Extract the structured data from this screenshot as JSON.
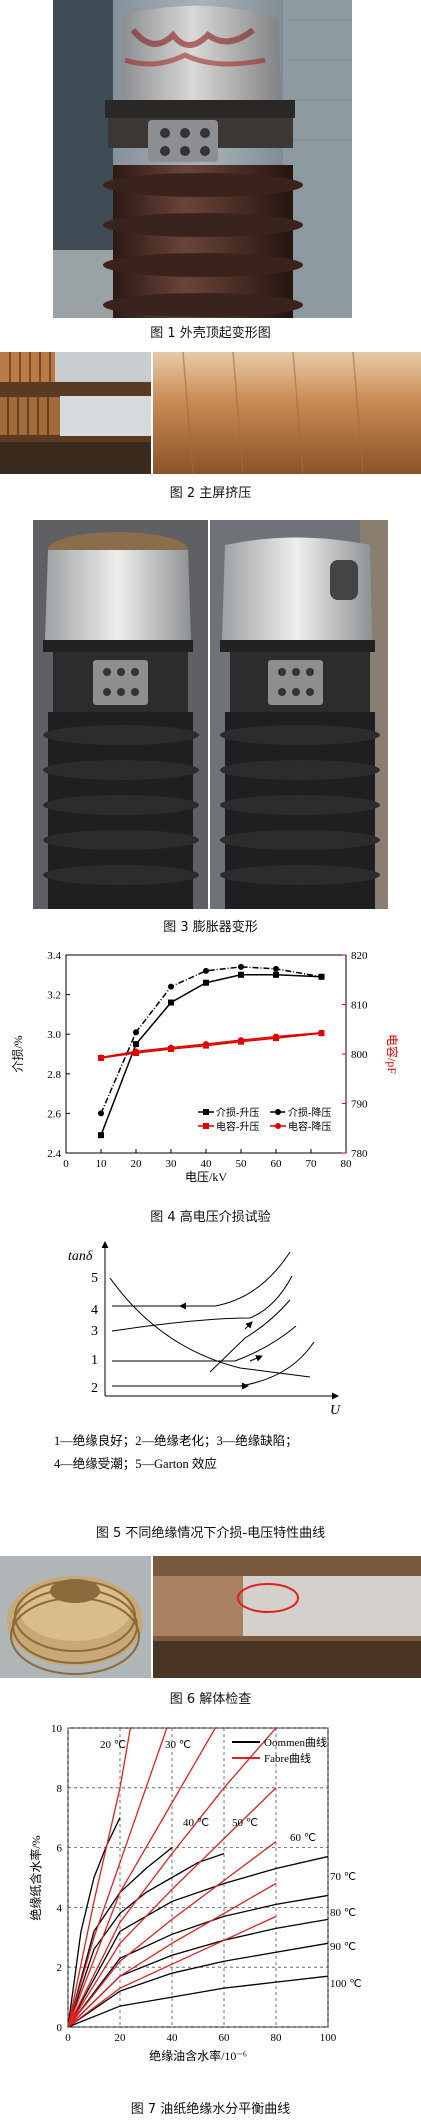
{
  "figures": {
    "fig1": {
      "caption": "图 1  外壳顶起变形图"
    },
    "fig2": {
      "caption": "图 2  主屏挤压"
    },
    "fig3": {
      "caption": "图 3  膨胀器变形"
    },
    "fig4": {
      "caption": "图 4  高电压介损试验"
    },
    "fig5": {
      "caption": "图 5  不同绝缘情况下介损-电压特性曲线"
    },
    "fig6": {
      "caption": "图 6  解体检查"
    },
    "fig7": {
      "caption": "图 7  油纸绝缘水分平衡曲线"
    }
  },
  "chart_data": [
    {
      "id": "fig4",
      "type": "line",
      "xlabel": "电压/kV",
      "ylabel_left": "介损/%",
      "ylabel_right": "电容/pF",
      "xlim": [
        0,
        80
      ],
      "ylim_left": [
        2.4,
        3.4
      ],
      "ylim_right": [
        780,
        820
      ],
      "x_ticks": [
        "0",
        "10",
        "20",
        "30",
        "40",
        "50",
        "60",
        "70",
        "80"
      ],
      "y_ticks_left": [
        "2.4",
        "2.6",
        "2.8",
        "3.0",
        "3.2",
        "3.4"
      ],
      "y_ticks_right": [
        "780",
        "790",
        "800",
        "810",
        "820"
      ],
      "series": [
        {
          "name": "介损-升压",
          "axis": "left",
          "color": "#000000",
          "marker": "square",
          "dash": "solid",
          "x": [
            10,
            20,
            30,
            40,
            50,
            60,
            73
          ],
          "y": [
            2.49,
            2.95,
            3.16,
            3.26,
            3.3,
            3.3,
            3.29
          ]
        },
        {
          "name": "介损-降压",
          "axis": "left",
          "color": "#000000",
          "marker": "circle",
          "dash": "dashdot",
          "x": [
            10,
            20,
            30,
            40,
            50,
            60,
            73
          ],
          "y": [
            2.6,
            3.01,
            3.24,
            3.32,
            3.34,
            3.33,
            3.29
          ]
        },
        {
          "name": "电容-升压",
          "axis": "right",
          "color": "#e00000",
          "marker": "square",
          "dash": "solid",
          "x": [
            10,
            20,
            30,
            40,
            50,
            60,
            73
          ],
          "y": [
            799.2,
            800.2,
            801.0,
            801.7,
            802.5,
            803.2,
            804.2
          ]
        },
        {
          "name": "电容-降压",
          "axis": "right",
          "color": "#e00000",
          "marker": "circle",
          "dash": "solid",
          "x": [
            10,
            20,
            30,
            40,
            50,
            60,
            73
          ],
          "y": [
            799.3,
            800.5,
            801.3,
            802.0,
            802.8,
            803.5,
            804.3
          ]
        }
      ]
    },
    {
      "id": "fig7",
      "type": "line",
      "xlabel": "绝缘油含水率/10⁻⁶",
      "ylabel": "绝缘纸含水率/%",
      "xlim": [
        0,
        100
      ],
      "ylim": [
        0,
        10
      ],
      "x_ticks": [
        "0",
        "20",
        "40",
        "60",
        "80",
        "100"
      ],
      "y_ticks": [
        "0",
        "2",
        "4",
        "6",
        "8",
        "10"
      ],
      "legend": [
        "Oommen曲线",
        "Fabre曲线"
      ],
      "temperatures": [
        "20 ℃",
        "30 ℃",
        "40 ℃",
        "50 ℃",
        "60 ℃",
        "70 ℃",
        "80 ℃",
        "90 ℃",
        "100 ℃"
      ],
      "series": [
        {
          "name": "Oommen曲线",
          "color": "#000000",
          "curves": [
            {
              "x": [
                0,
                5,
                10,
                15,
                20
              ],
              "y": [
                0,
                3.2,
                5.0,
                6.1,
                7.0
              ]
            },
            {
              "x": [
                0,
                10,
                20,
                30,
                40
              ],
              "y": [
                0,
                3.2,
                4.5,
                5.3,
                6.0
              ]
            },
            {
              "x": [
                0,
                10,
                20,
                30,
                40,
                50,
                60
              ],
              "y": [
                0,
                2.6,
                3.8,
                4.5,
                5.0,
                5.5,
                5.8
              ]
            },
            {
              "x": [
                0,
                20,
                40,
                60,
                80,
                100
              ],
              "y": [
                0,
                3.2,
                4.2,
                4.8,
                5.3,
                5.7
              ]
            },
            {
              "x": [
                0,
                20,
                40,
                60,
                80,
                100
              ],
              "y": [
                0,
                2.3,
                3.1,
                3.7,
                4.1,
                4.4
              ]
            },
            {
              "x": [
                0,
                20,
                40,
                60,
                80,
                100
              ],
              "y": [
                0,
                1.7,
                2.4,
                2.9,
                3.3,
                3.6
              ]
            },
            {
              "x": [
                0,
                20,
                40,
                60,
                80,
                100
              ],
              "y": [
                0,
                1.2,
                1.8,
                2.2,
                2.5,
                2.8
              ]
            },
            {
              "x": [
                0,
                20,
                40,
                60,
                80,
                100
              ],
              "y": [
                0,
                0.7,
                1.0,
                1.3,
                1.5,
                1.7
              ]
            }
          ]
        },
        {
          "name": "Fabre曲线",
          "color": "#e02020",
          "curves": [
            {
              "x": [
                0,
                10,
                20,
                25
              ],
              "y": [
                0,
                4.2,
                8.0,
                10.5
              ]
            },
            {
              "x": [
                0,
                10,
                20,
                30,
                40
              ],
              "y": [
                0,
                3.0,
                5.5,
                8.0,
                10.5
              ]
            },
            {
              "x": [
                0,
                20,
                40,
                60
              ],
              "y": [
                0,
                4.5,
                7.5,
                10.5
              ]
            },
            {
              "x": [
                0,
                20,
                40,
                60,
                80
              ],
              "y": [
                0,
                3.5,
                5.8,
                8.0,
                10.0
              ]
            },
            {
              "x": [
                0,
                20,
                40,
                60,
                80
              ],
              "y": [
                0,
                2.8,
                4.6,
                6.3,
                8.0
              ]
            },
            {
              "x": [
                0,
                20,
                40,
                60,
                80
              ],
              "y": [
                0,
                2.2,
                3.6,
                4.9,
                6.2
              ]
            },
            {
              "x": [
                0,
                20,
                40,
                60,
                80
              ],
              "y": [
                0,
                1.7,
                2.8,
                3.8,
                4.8
              ]
            },
            {
              "x": [
                0,
                20,
                40,
                60,
                80
              ],
              "y": [
                0,
                1.3,
                2.1,
                2.9,
                3.7
              ]
            }
          ]
        }
      ]
    },
    {
      "id": "fig5",
      "type": "line",
      "ylabel": "tanδ",
      "xlabel": "U",
      "curve_numbers": [
        "5",
        "4",
        "3",
        "1",
        "2"
      ],
      "legend_text_line1": "1—绝缘良好；2—绝缘老化；3—绝缘缺陷；",
      "legend_text_line2": "4—绝缘受潮；5—Garton 效应"
    }
  ]
}
